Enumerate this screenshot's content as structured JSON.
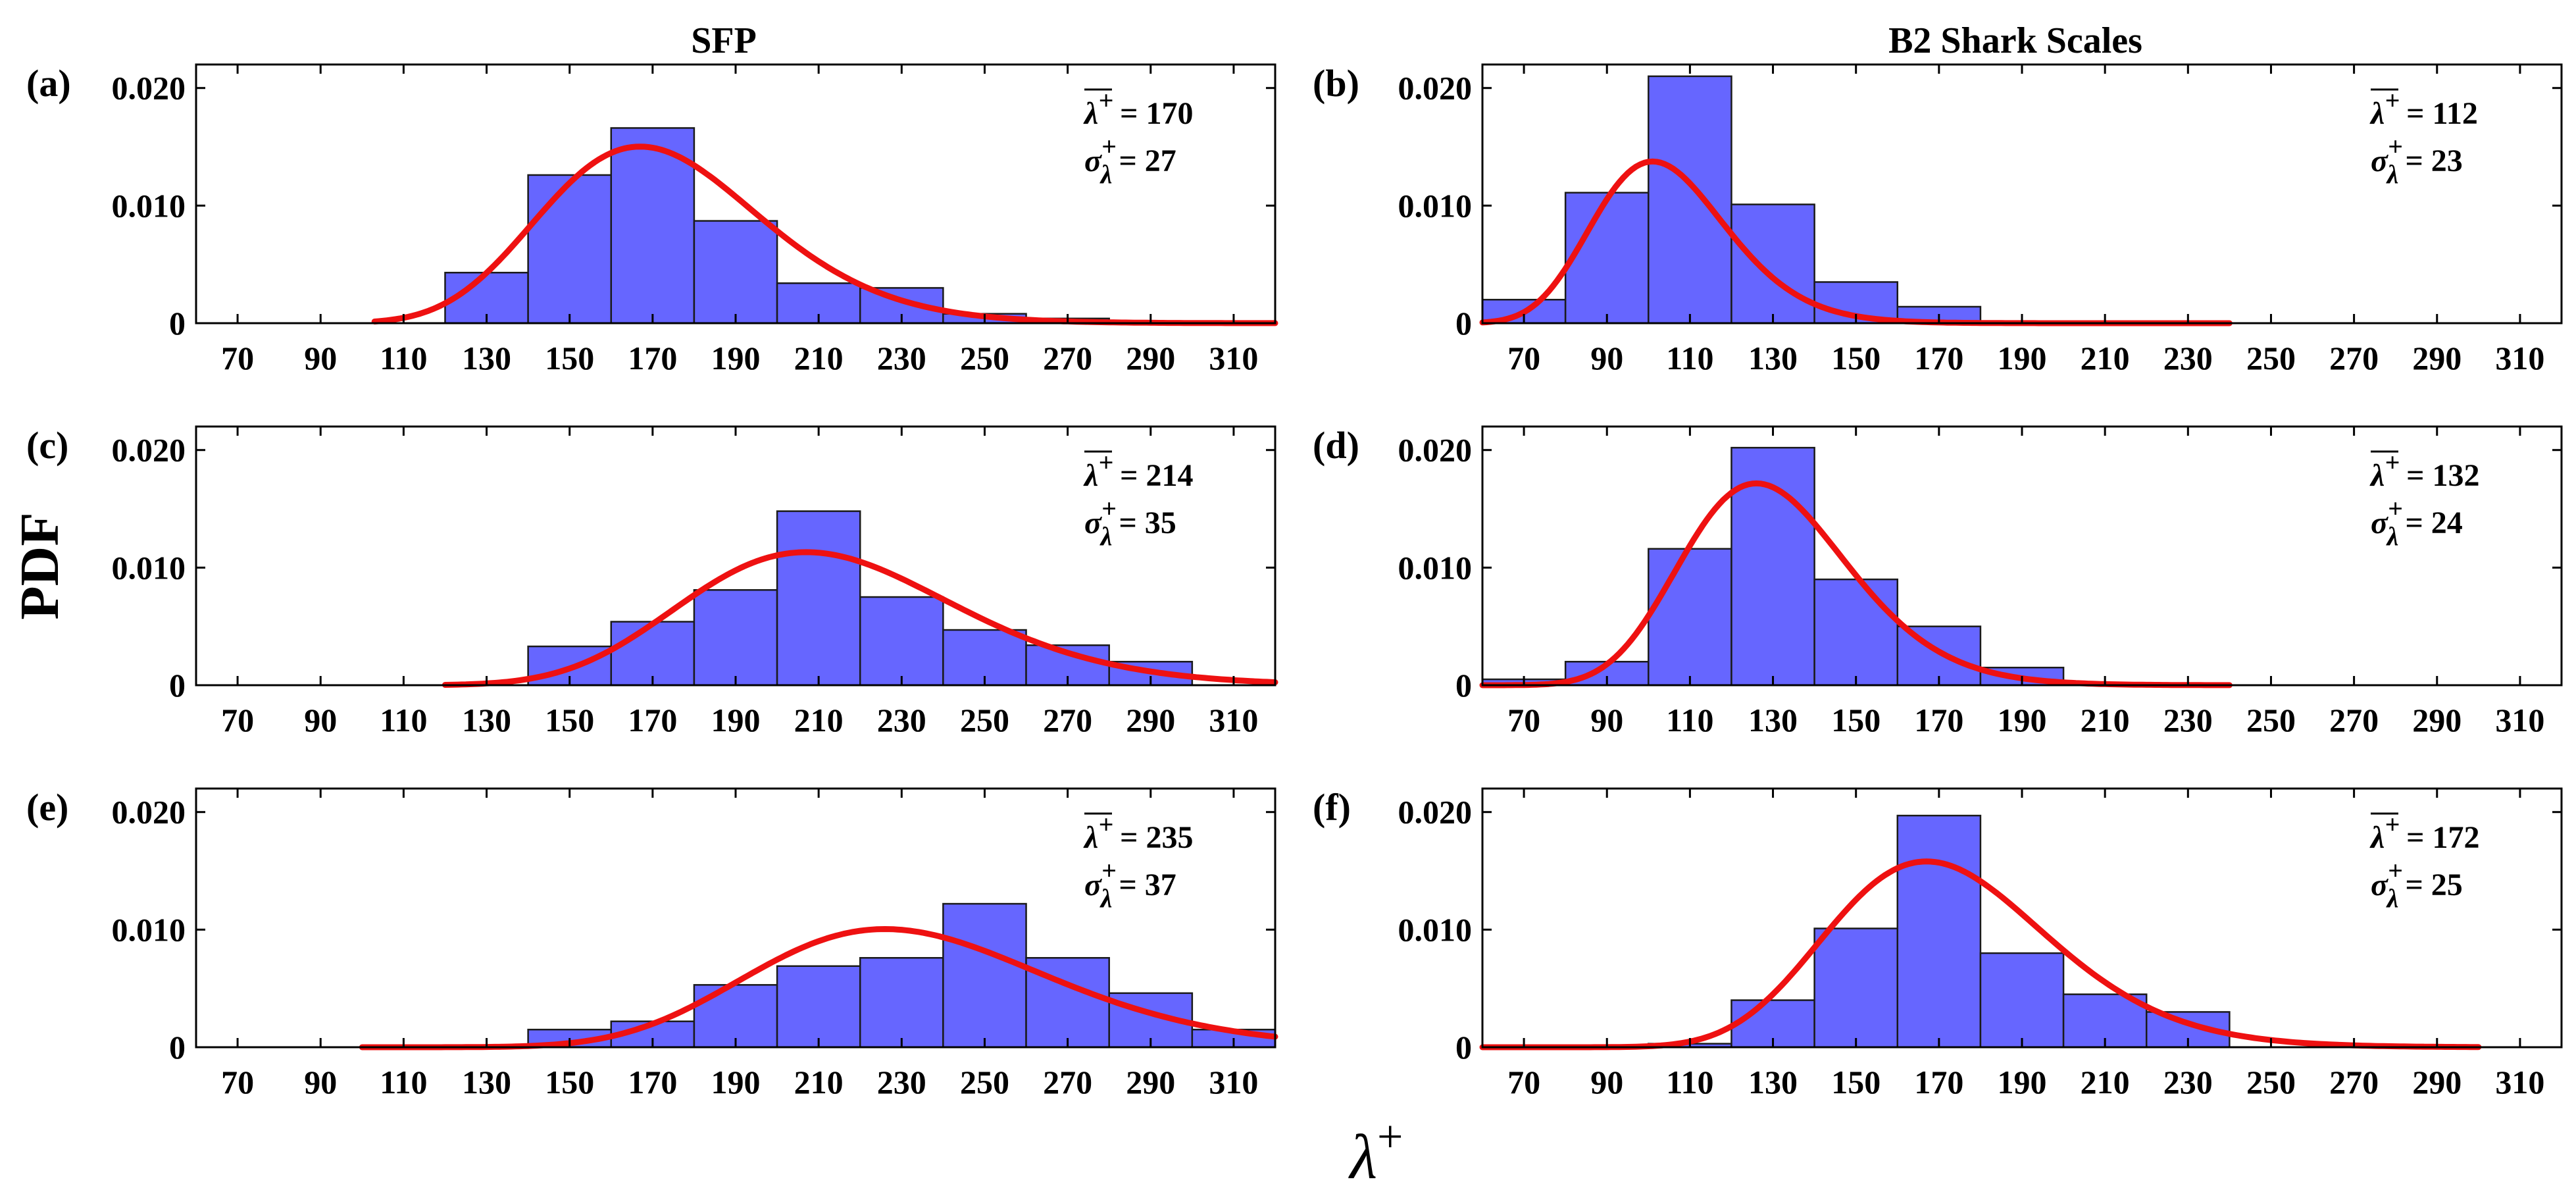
{
  "figure": {
    "col_titles": [
      "SFP",
      "B2 Shark Scales"
    ],
    "ylabel": "PDF",
    "xlabel": "λ+"
  },
  "chart_data": [
    {
      "type": "bar",
      "panel": "(a)",
      "title": "SFP",
      "xlabel": "λ+",
      "ylabel": "PDF",
      "xlim": [
        60,
        320
      ],
      "ylim": [
        0,
        0.022
      ],
      "xticks": [
        70,
        90,
        110,
        130,
        150,
        170,
        190,
        210,
        230,
        250,
        270,
        290,
        310
      ],
      "yticks": [
        0,
        0.01,
        0.02
      ],
      "ytick_labels": [
        "0",
        "0.010",
        "0.020"
      ],
      "bin_edges": [
        120,
        140,
        160,
        180,
        200,
        220,
        240,
        260,
        280,
        300
      ],
      "values": [
        0.0043,
        0.0126,
        0.0166,
        0.0087,
        0.0034,
        0.003,
        0.0008,
        0.0004,
        0.0001
      ],
      "fit": {
        "type": "lognormal",
        "range": [
          103,
          320
        ],
        "peak_x": 167,
        "peak_y": 0.0154
      },
      "stats": {
        "mean_label": "λ+",
        "mean_value": "= 170",
        "sigma_label": "σλ+",
        "sigma_value": "= 27"
      }
    },
    {
      "type": "bar",
      "panel": "(b)",
      "title": "B2 Shark Scales",
      "xlabel": "λ+",
      "ylabel": "PDF",
      "xlim": [
        60,
        320
      ],
      "ylim": [
        0,
        0.022
      ],
      "xticks": [
        70,
        90,
        110,
        130,
        150,
        170,
        190,
        210,
        230,
        250,
        270,
        290,
        310
      ],
      "yticks": [
        0,
        0.01,
        0.02
      ],
      "ytick_labels": [
        "0",
        "0.010",
        "0.020"
      ],
      "bin_edges": [
        60,
        80,
        100,
        120,
        140,
        160,
        180
      ],
      "values": [
        0.002,
        0.0111,
        0.021,
        0.0101,
        0.0035,
        0.0014
      ],
      "fit": {
        "type": "lognormal",
        "range": [
          60,
          240
        ],
        "peak_x": 101,
        "peak_y": 0.0141
      },
      "stats": {
        "mean_label": "λ+",
        "mean_value": "= 112",
        "sigma_label": "σλ+",
        "sigma_value": "= 23"
      }
    },
    {
      "type": "bar",
      "panel": "(c)",
      "title": "",
      "xlabel": "λ+",
      "ylabel": "PDF",
      "xlim": [
        60,
        320
      ],
      "ylim": [
        0,
        0.022
      ],
      "xticks": [
        70,
        90,
        110,
        130,
        150,
        170,
        190,
        210,
        230,
        250,
        270,
        290,
        310
      ],
      "yticks": [
        0,
        0.01,
        0.02
      ],
      "ytick_labels": [
        "0",
        "0.010",
        "0.020"
      ],
      "bin_edges": [
        140,
        160,
        180,
        200,
        220,
        240,
        260,
        280,
        300
      ],
      "values": [
        0.0033,
        0.0054,
        0.0081,
        0.0148,
        0.0075,
        0.0047,
        0.0034,
        0.002
      ],
      "fit": {
        "type": "lognormal",
        "range": [
          120,
          320
        ],
        "peak_x": 207,
        "peak_y": 0.0116
      },
      "stats": {
        "mean_label": "λ+",
        "mean_value": "= 214",
        "sigma_label": "σλ+",
        "sigma_value": "= 35"
      }
    },
    {
      "type": "bar",
      "panel": "(d)",
      "title": "",
      "xlabel": "λ+",
      "ylabel": "PDF",
      "xlim": [
        60,
        320
      ],
      "ylim": [
        0,
        0.022
      ],
      "xticks": [
        70,
        90,
        110,
        130,
        150,
        170,
        190,
        210,
        230,
        250,
        270,
        290,
        310
      ],
      "yticks": [
        0,
        0.01,
        0.02
      ],
      "ytick_labels": [
        "0",
        "0.010",
        "0.020"
      ],
      "bin_edges": [
        60,
        80,
        100,
        120,
        140,
        160,
        180,
        200
      ],
      "values": [
        0.0005,
        0.002,
        0.0116,
        0.0202,
        0.009,
        0.005,
        0.0015
      ],
      "fit": {
        "type": "lognormal",
        "range": [
          60,
          240
        ],
        "peak_x": 126,
        "peak_y": 0.0176
      },
      "stats": {
        "mean_label": "λ+",
        "mean_value": "= 132",
        "sigma_label": "σλ+",
        "sigma_value": "= 24"
      }
    },
    {
      "type": "bar",
      "panel": "(e)",
      "title": "",
      "xlabel": "λ+",
      "ylabel": "PDF",
      "xlim": [
        60,
        320
      ],
      "ylim": [
        0,
        0.022
      ],
      "xticks": [
        70,
        90,
        110,
        130,
        150,
        170,
        190,
        210,
        230,
        250,
        270,
        290,
        310
      ],
      "yticks": [
        0,
        0.01,
        0.02
      ],
      "ytick_labels": [
        "0",
        "0.010",
        "0.020"
      ],
      "bin_edges": [
        140,
        160,
        180,
        200,
        220,
        240,
        260,
        280,
        300,
        320
      ],
      "values": [
        0.0015,
        0.0022,
        0.0053,
        0.0069,
        0.0076,
        0.0122,
        0.0076,
        0.0046,
        0.0015
      ],
      "fit": {
        "type": "lognormal",
        "range": [
          100,
          320
        ],
        "peak_x": 226,
        "peak_y": 0.0103
      },
      "stats": {
        "mean_label": "λ+",
        "mean_value": "= 235",
        "sigma_label": "σλ+",
        "sigma_value": "= 37"
      }
    },
    {
      "type": "bar",
      "panel": "(f)",
      "title": "",
      "xlabel": "λ+",
      "ylabel": "PDF",
      "xlim": [
        60,
        320
      ],
      "ylim": [
        0,
        0.022
      ],
      "xticks": [
        70,
        90,
        110,
        130,
        150,
        170,
        190,
        210,
        230,
        250,
        270,
        290,
        310
      ],
      "yticks": [
        0,
        0.01,
        0.02
      ],
      "ytick_labels": [
        "0",
        "0.010",
        "0.020"
      ],
      "bin_edges": [
        100,
        120,
        140,
        160,
        180,
        200,
        220,
        240
      ],
      "values": [
        0.0003,
        0.004,
        0.0101,
        0.0197,
        0.008,
        0.0045,
        0.003
      ],
      "fit": {
        "type": "lognormal",
        "range": [
          60,
          300
        ],
        "peak_x": 167,
        "peak_y": 0.0162
      },
      "stats": {
        "mean_label": "λ+",
        "mean_value": "= 172",
        "sigma_label": "σλ+",
        "sigma_value": "= 25"
      }
    }
  ]
}
